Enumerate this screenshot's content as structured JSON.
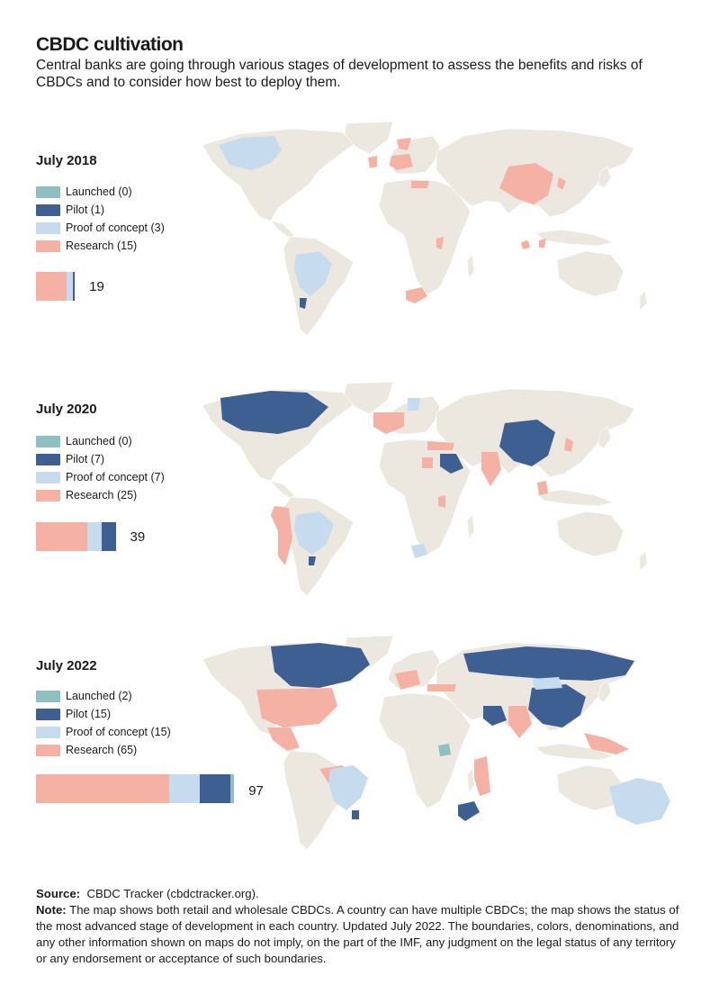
{
  "title": "CBDC cultivation",
  "subtitle": "Central banks are going through various stages of development to assess the benefits and risks of CBDCs and to consider how best to deploy them.",
  "colors": {
    "launched": "#8fc0c0",
    "pilot": "#3e5f92",
    "proof": "#c6dcee",
    "research": "#f5b2a4",
    "land": "#ede8df"
  },
  "panels": [
    {
      "title": "July 2018",
      "legend": [
        "Launched (0)",
        "Pilot (1)",
        "Proof of concept (3)",
        "Research (15)"
      ],
      "counts": {
        "launched": 0,
        "pilot": 1,
        "proof": 3,
        "research": 15
      },
      "total": "19"
    },
    {
      "title": "July 2020",
      "legend": [
        "Launched (0)",
        "Pilot (7)",
        "Proof of concept (7)",
        "Research (25)"
      ],
      "counts": {
        "launched": 0,
        "pilot": 7,
        "proof": 7,
        "research": 25
      },
      "total": "39"
    },
    {
      "title": "July 2022",
      "legend": [
        "Launched (2)",
        "Pilot (15)",
        "Proof of concept (15)",
        "Research (65)"
      ],
      "counts": {
        "launched": 2,
        "pilot": 15,
        "proof": 15,
        "research": 65
      },
      "total": "97"
    }
  ],
  "footer": {
    "source_label": "Source:",
    "source_text": "CBDC Tracker (cbdctracker.org).",
    "note_label": "Note:",
    "note_text": "The map shows both retail and wholesale CBDCs. A country can have multiple CBDCs; the map shows the status of the most advanced stage of development in each country. Updated July 2022. The boundaries, colors, denominations, and any other information shown on maps do not imply, on the part of the IMF, any judgment on the legal status of any territory or any endorsement or acceptance of such boundaries."
  }
}
